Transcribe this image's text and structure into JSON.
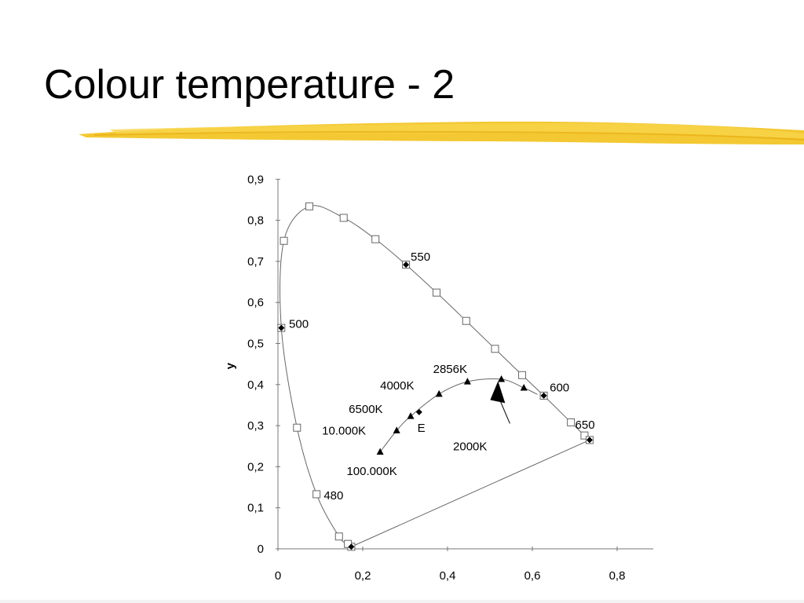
{
  "slide": {
    "title": "Colour temperature - 2",
    "accent_color": "#f2c21c"
  },
  "chart_data": {
    "type": "scatter",
    "title": "",
    "xlabel": "",
    "ylabel": "y",
    "xlim": [
      0,
      0.88
    ],
    "ylim": [
      0,
      0.9
    ],
    "x_ticks": [
      "0",
      "0,2",
      "0,4",
      "0,6",
      "0,8"
    ],
    "y_ticks": [
      "0",
      "0,1",
      "0,2",
      "0,3",
      "0,4",
      "0,5",
      "0,6",
      "0,7",
      "0,8",
      "0,9"
    ],
    "series": [
      {
        "marker": "open-square",
        "points": [
          [
            0.173,
            0.005
          ],
          [
            0.165,
            0.012
          ],
          [
            0.144,
            0.03
          ],
          [
            0.091,
            0.133
          ],
          [
            0.045,
            0.295
          ],
          [
            0.008,
            0.538
          ],
          [
            0.014,
            0.75
          ],
          [
            0.074,
            0.834
          ],
          [
            0.155,
            0.806
          ],
          [
            0.23,
            0.754
          ],
          [
            0.302,
            0.692
          ],
          [
            0.374,
            0.624
          ],
          [
            0.444,
            0.555
          ],
          [
            0.512,
            0.487
          ],
          [
            0.576,
            0.423
          ],
          [
            0.627,
            0.373
          ],
          [
            0.691,
            0.308
          ],
          [
            0.723,
            0.276
          ],
          [
            0.735,
            0.265
          ]
        ]
      },
      {
        "marker": "filled-diamond",
        "points": [
          [
            0.173,
            0.005
          ],
          [
            0.008,
            0.538
          ],
          [
            0.302,
            0.692
          ],
          [
            0.627,
            0.373
          ],
          [
            0.735,
            0.265
          ]
        ]
      },
      {
        "marker": "filled-triangle",
        "points": [
          [
            0.241,
            0.236
          ],
          [
            0.28,
            0.288
          ],
          [
            0.313,
            0.323
          ],
          [
            0.38,
            0.377
          ],
          [
            0.447,
            0.407
          ],
          [
            0.527,
            0.413
          ],
          [
            0.58,
            0.392
          ]
        ]
      },
      {
        "marker": "filled-diamond",
        "points": [
          [
            0.333,
            0.333
          ]
        ]
      }
    ],
    "annotations": [
      {
        "text": "550",
        "x": 0.313,
        "y": 0.702
      },
      {
        "text": "500",
        "x": 0.026,
        "y": 0.538
      },
      {
        "text": "600",
        "x": 0.641,
        "y": 0.383
      },
      {
        "text": "650",
        "x": 0.701,
        "y": 0.293
      },
      {
        "text": "480",
        "x": 0.108,
        "y": 0.12
      },
      {
        "text": "2856K",
        "x": 0.366,
        "y": 0.428
      },
      {
        "text": "4000K",
        "x": 0.241,
        "y": 0.388
      },
      {
        "text": "6500K",
        "x": 0.167,
        "y": 0.331
      },
      {
        "text": "10.000K",
        "x": 0.104,
        "y": 0.278
      },
      {
        "text": "E",
        "x": 0.329,
        "y": 0.285
      },
      {
        "text": "2000K",
        "x": 0.413,
        "y": 0.24
      },
      {
        "text": "100.000K",
        "x": 0.162,
        "y": 0.18
      }
    ],
    "arrow": {
      "from": [
        0.547,
        0.305
      ],
      "to": [
        0.521,
        0.395
      ]
    },
    "grid": false,
    "legend": "none"
  }
}
